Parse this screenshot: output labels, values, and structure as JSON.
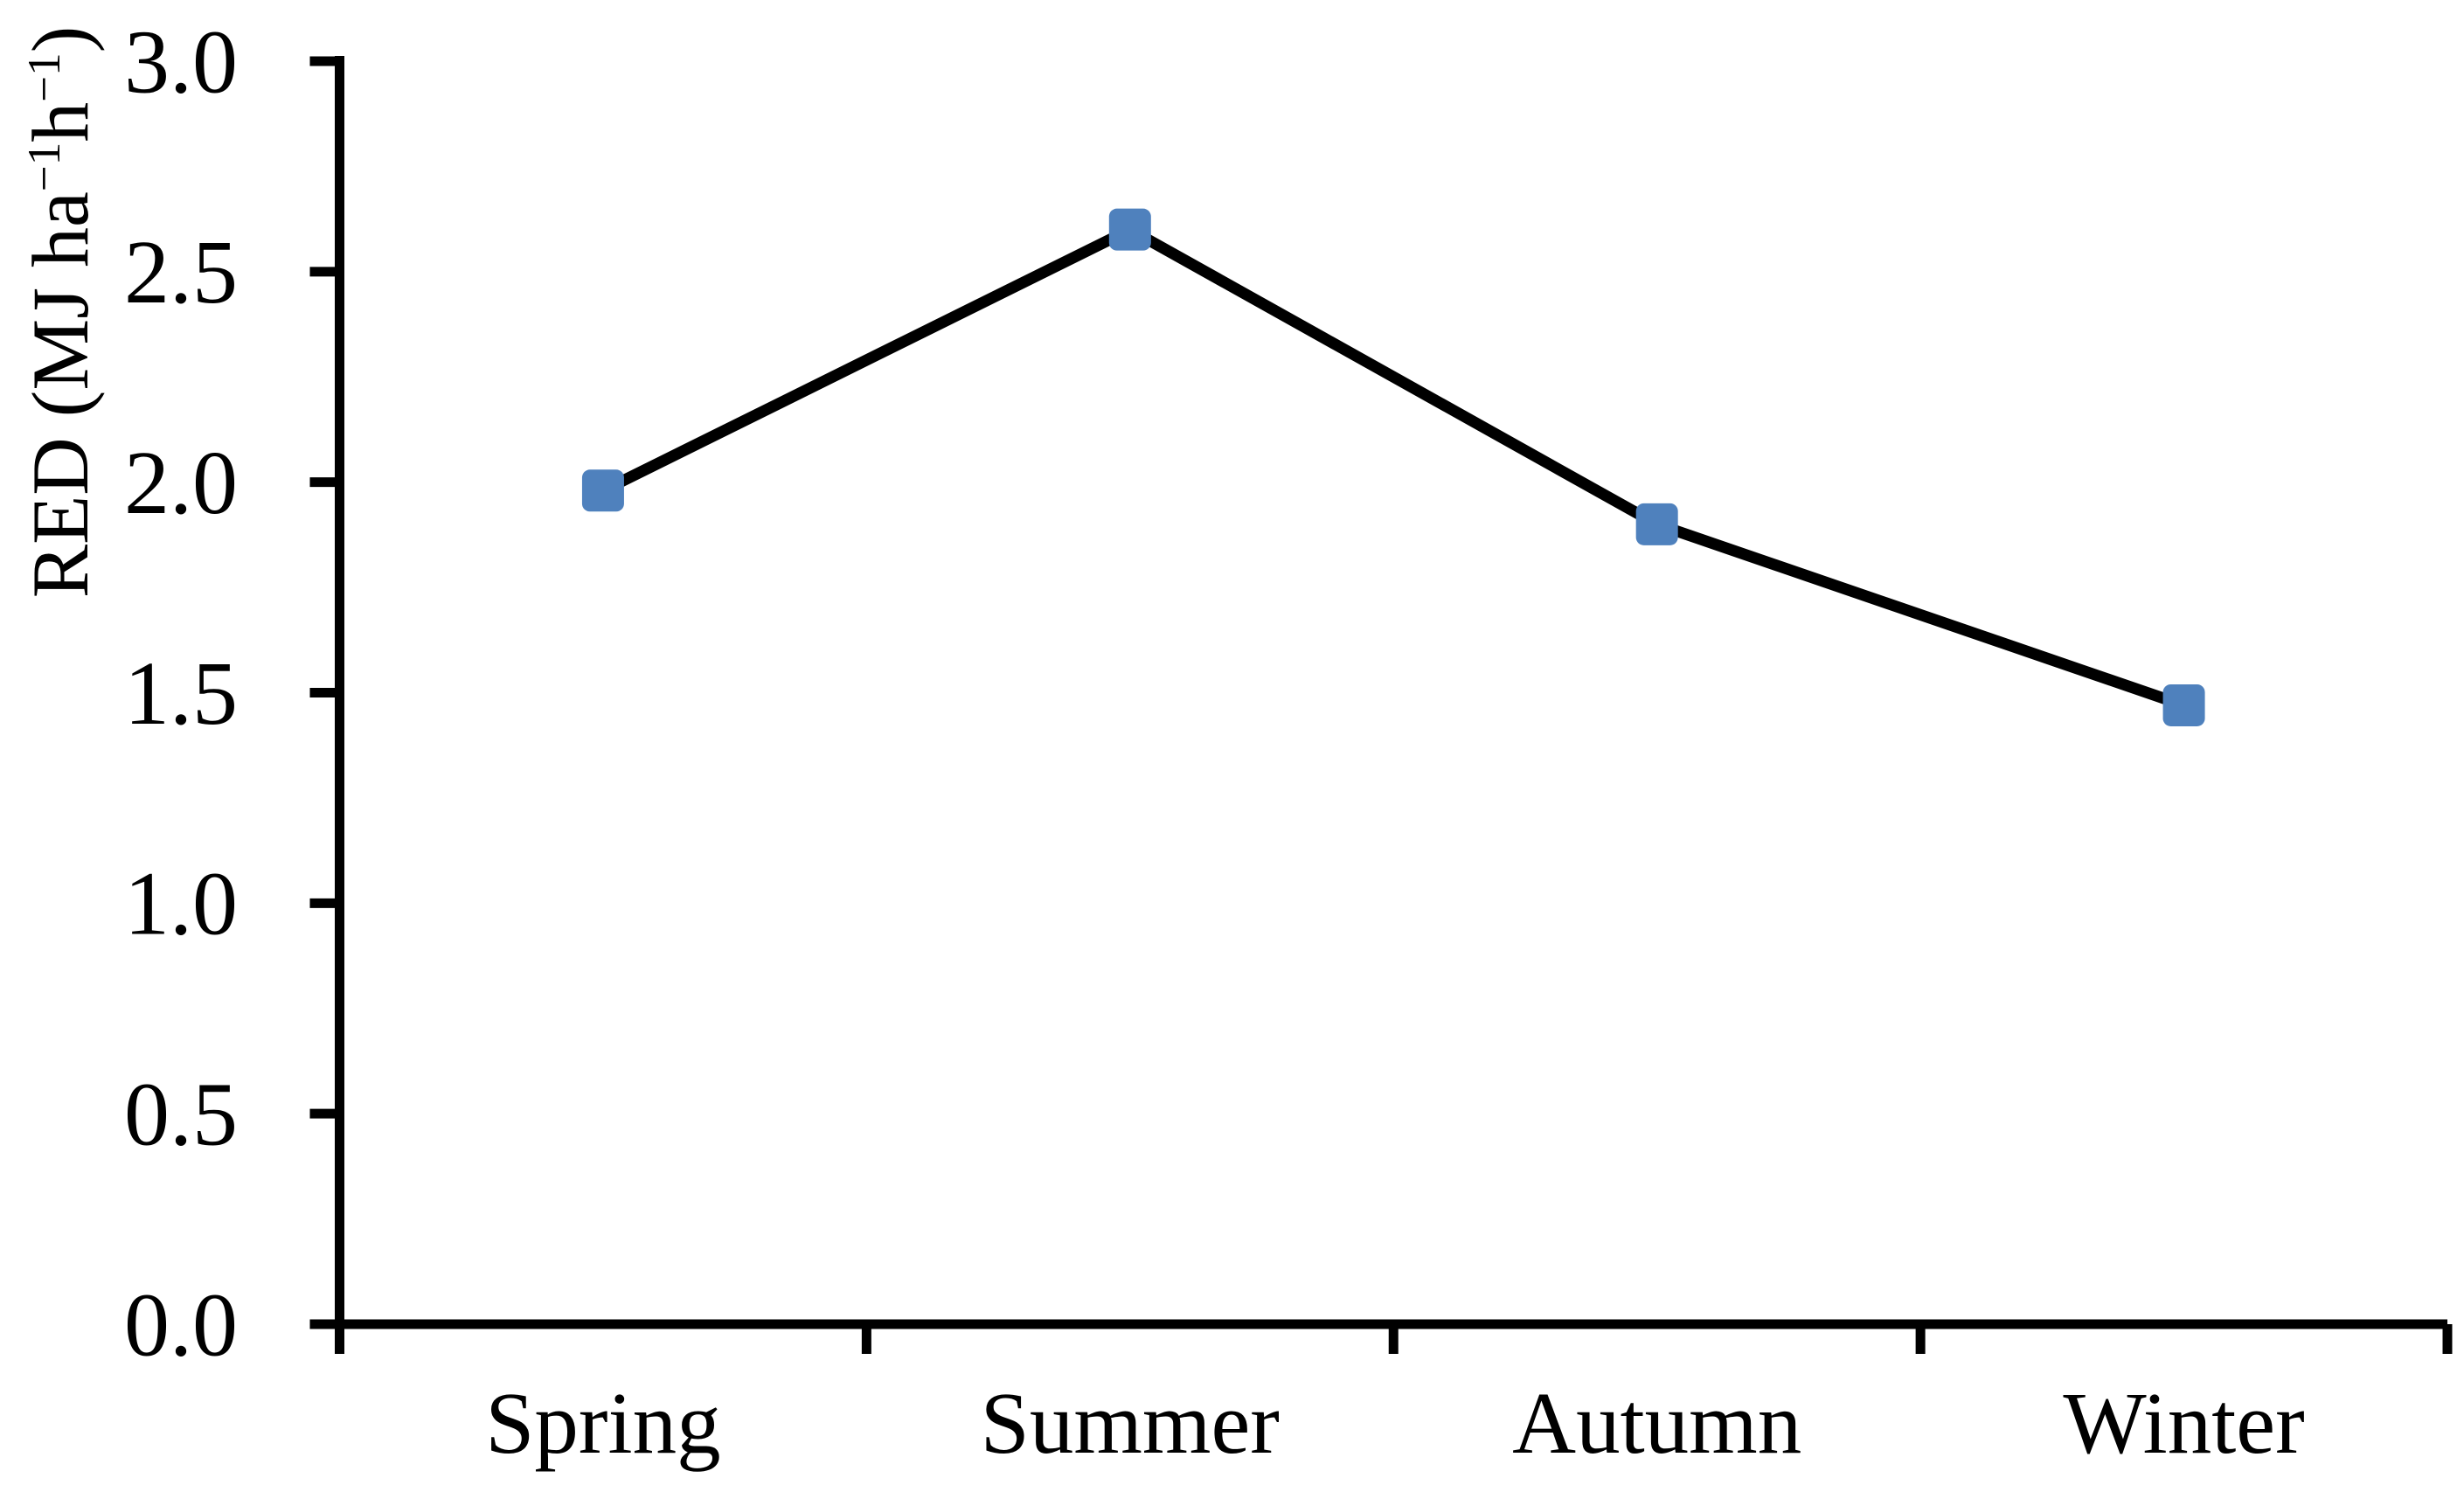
{
  "chart_data": {
    "type": "line",
    "categories": [
      "Spring",
      "Summer",
      "Autumn",
      "Winter"
    ],
    "series": [
      {
        "name": "RED",
        "values": [
          1.98,
          2.6,
          1.9,
          1.47
        ]
      }
    ],
    "title": "",
    "xlabel": "",
    "ylabel": "RED (MJ ha⁻¹h⁻¹)",
    "ylabel_parts": [
      {
        "text": "RED (MJ ha",
        "sup": false
      },
      {
        "text": "−1",
        "sup": true
      },
      {
        "text": "h",
        "sup": false
      },
      {
        "text": "−1",
        "sup": true
      },
      {
        "text": ")",
        "sup": false
      }
    ],
    "y_ticks": [
      "3.0",
      "2.5",
      "2.0",
      "1.5",
      "1.0",
      "0.5",
      "0.0"
    ],
    "ylim": [
      0.0,
      3.0
    ],
    "y_tick_step": 0.5,
    "grid": false,
    "legend": "none",
    "marker": "square",
    "colors": {
      "line": "#000000",
      "marker_fill": "#4F81BD",
      "axis": "#000000",
      "text": "#000000",
      "background": "#ffffff"
    }
  }
}
